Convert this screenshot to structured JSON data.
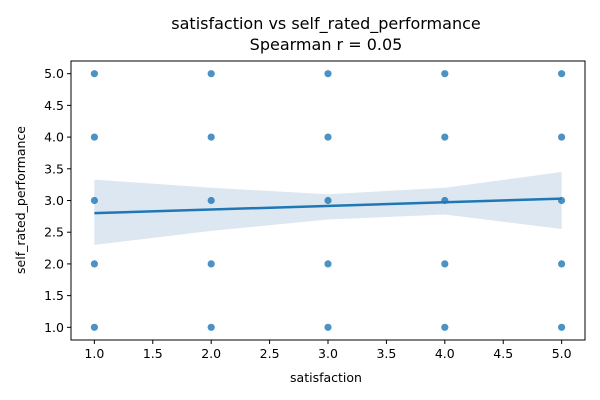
{
  "chart_data": {
    "type": "scatter",
    "title": "satisfaction vs self_rated_performance",
    "subtitle": "Spearman r = 0.05",
    "xlabel": "satisfaction",
    "ylabel": "self_rated_performance",
    "xlim": [
      0.8,
      5.2
    ],
    "ylim": [
      0.8,
      5.2
    ],
    "xticks": [
      "1.0",
      "1.5",
      "2.0",
      "2.5",
      "3.0",
      "3.5",
      "4.0",
      "4.5",
      "5.0"
    ],
    "yticks": [
      "1.0",
      "1.5",
      "2.0",
      "2.5",
      "3.0",
      "3.5",
      "4.0",
      "4.5",
      "5.0"
    ],
    "grid": false,
    "points": [
      {
        "x": 1,
        "y": 5
      },
      {
        "x": 1,
        "y": 4
      },
      {
        "x": 1,
        "y": 3
      },
      {
        "x": 1,
        "y": 2
      },
      {
        "x": 1,
        "y": 1
      },
      {
        "x": 2,
        "y": 5
      },
      {
        "x": 2,
        "y": 4
      },
      {
        "x": 2,
        "y": 3
      },
      {
        "x": 2,
        "y": 2
      },
      {
        "x": 2,
        "y": 1
      },
      {
        "x": 3,
        "y": 5
      },
      {
        "x": 3,
        "y": 4
      },
      {
        "x": 3,
        "y": 3
      },
      {
        "x": 3,
        "y": 2
      },
      {
        "x": 3,
        "y": 1
      },
      {
        "x": 4,
        "y": 5
      },
      {
        "x": 4,
        "y": 4
      },
      {
        "x": 4,
        "y": 3
      },
      {
        "x": 4,
        "y": 2
      },
      {
        "x": 4,
        "y": 1
      },
      {
        "x": 5,
        "y": 5
      },
      {
        "x": 5,
        "y": 4
      },
      {
        "x": 5,
        "y": 3
      },
      {
        "x": 5,
        "y": 2
      },
      {
        "x": 5,
        "y": 1
      }
    ],
    "regression_line": {
      "x": [
        1,
        5
      ],
      "y": [
        2.8,
        3.03
      ]
    },
    "confidence_band": {
      "x": [
        1,
        2,
        3,
        4,
        5
      ],
      "lower": [
        2.3,
        2.52,
        2.7,
        2.78,
        2.55
      ],
      "upper": [
        3.33,
        3.2,
        3.1,
        3.2,
        3.45
      ]
    },
    "colors": {
      "point": "#1f77b4",
      "line": "#1f77b4",
      "band": "#d6e3f0"
    }
  }
}
